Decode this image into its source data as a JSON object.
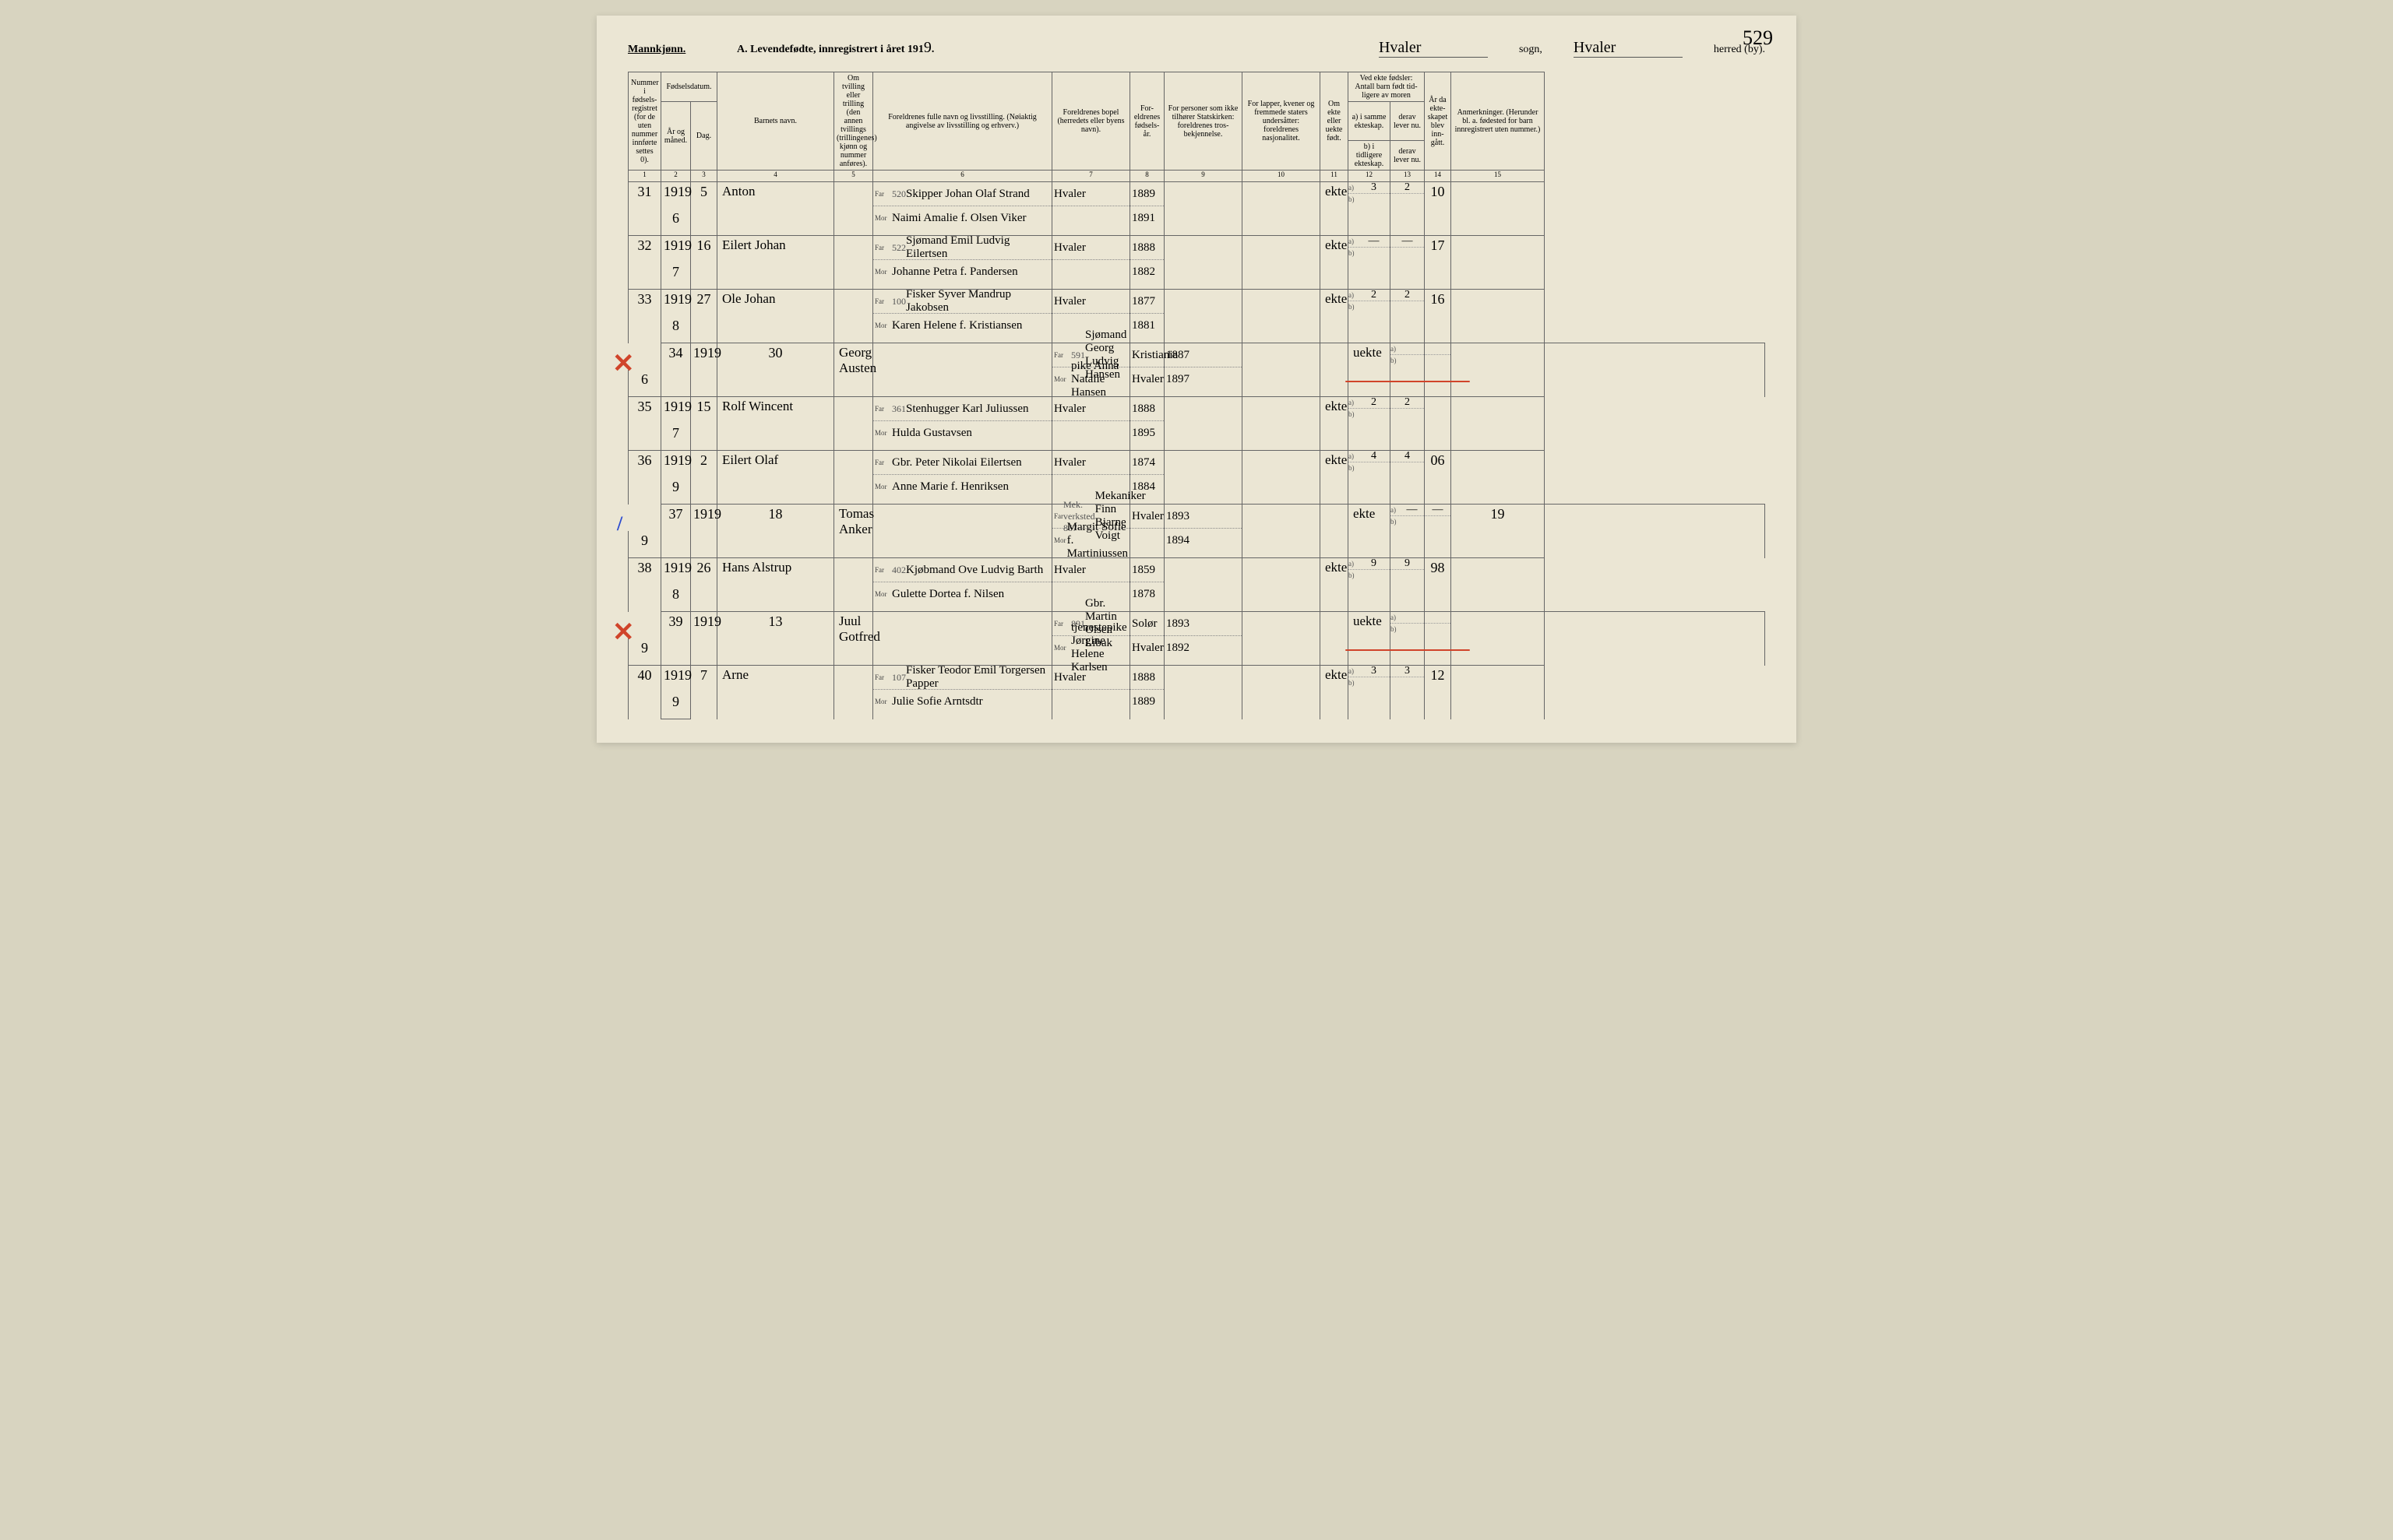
{
  "header": {
    "gender": "Mannkjønn.",
    "title_prefix": "A.  Levendefødte, innregistrert i året 191",
    "year_suffix": "9",
    "sogn_value": "Hvaler",
    "sogn_label": "sogn,",
    "herred_value": "Hvaler",
    "herred_label": "herred (by).",
    "page_number": "529"
  },
  "columns": {
    "h1": "Nummer i fødsels-registret (for de uten nummer innførte settes 0).",
    "h2_group": "Fødselsdatum.",
    "h2a": "År og måned.",
    "h2b": "Dag.",
    "h4": "Barnets navn.",
    "h5": "Om tvilling eller trilling (den annen tvillings (trillingenes) kjønn og nummer anføres).",
    "h6": "Foreldrenes fulle navn og livsstilling. (Nøiaktig angivelse av livsstilling og erhverv.)",
    "h7": "Foreldrenes bopel (herredets eller byens navn).",
    "h8": "For-eldrenes fødsels-år.",
    "h9": "For personer som ikke tilhører Statskirken: foreldrenes tros-bekjennelse.",
    "h10": "For lapper, kvener og fremmede staters undersåtter: foreldrenes nasjonalitet.",
    "h11": "Om ekte eller uekte født.",
    "h12_group": "Ved ekte fødsler: Antall barn født tid-ligere av moren",
    "h12a": "a) i samme ekteskap.",
    "h12b": "b) i tidligere ekteskap.",
    "h13a": "derav lever nu.",
    "h13b": "derav lever nu.",
    "h14": "År da ekte-skapet blev inn-gått.",
    "h15": "Anmerkninger. (Herunder bl. a. fødested for barn innregistrert uten nummer.)",
    "far": "Far",
    "mor": "Mor",
    "a_lab": "a)",
    "b_lab": "b)",
    "nums": [
      "1",
      "2",
      "3",
      "4",
      "5",
      "6",
      "7",
      "8",
      "9",
      "10",
      "11",
      "12",
      "13",
      "14",
      "15"
    ]
  },
  "rows": [
    {
      "reg": "31",
      "year": "1919",
      "month": "6",
      "day": "5",
      "child": "Anton",
      "sup": "520",
      "far": "Skipper Johan Olaf Strand",
      "mor": "Naimi Amalie f. Olsen Viker",
      "bopel": "Hvaler",
      "far_yr": "1889",
      "mor_yr": "1891",
      "ekte": "ekte",
      "a": "3",
      "d": "2",
      "aar": "10",
      "mark": ""
    },
    {
      "reg": "32",
      "year": "1919",
      "month": "7",
      "day": "16",
      "child": "Eilert Johan",
      "sup": "522",
      "far": "Sjømand Emil Ludvig Eilertsen",
      "mor": "Johanne Petra f. Pandersen",
      "bopel": "Hvaler",
      "far_yr": "1888",
      "mor_yr": "1882",
      "ekte": "ekte",
      "a": "—",
      "d": "—",
      "aar": "17",
      "mark": ""
    },
    {
      "reg": "33",
      "year": "1919",
      "month": "8",
      "day": "27",
      "child": "Ole Johan",
      "sup": "100",
      "far": "Fisker Syver Mandrup Jakobsen",
      "mor": "Karen Helene f. Kristiansen",
      "bopel": "Hvaler",
      "far_yr": "1877",
      "mor_yr": "1881",
      "ekte": "ekte",
      "a": "2",
      "d": "2",
      "aar": "16",
      "mark": ""
    },
    {
      "reg": "34",
      "year": "1919",
      "month": "6",
      "day": "30",
      "child": "Georg Austen",
      "sup": "591",
      "far": "Sjømand Georg Ludvig Hansen",
      "mor": "pike Anna Natalie Hansen",
      "bopel_far": "Kristiania",
      "bopel": "Hvaler",
      "far_yr": "1887",
      "mor_yr": "1897",
      "ekte": "uekte",
      "a": "",
      "d": "",
      "aar": "",
      "mark": "x-red",
      "redline": true
    },
    {
      "reg": "35",
      "year": "1919",
      "month": "7",
      "day": "15",
      "child": "Rolf Wincent",
      "sup": "361",
      "far": "Stenhugger Karl Juliussen",
      "mor": "Hulda Gustavsen",
      "bopel": "Hvaler",
      "far_yr": "1888",
      "mor_yr": "1895",
      "ekte": "ekte",
      "a": "2",
      "d": "2",
      "aar": "",
      "mark": ""
    },
    {
      "reg": "36",
      "year": "1919",
      "month": "9",
      "day": "2",
      "child": "Eilert Olaf",
      "sup": "",
      "far": "Gbr. Peter Nikolai Eilertsen",
      "mor": "Anne Marie f. Henriksen",
      "bopel": "Hvaler",
      "far_yr": "1874",
      "mor_yr": "1884",
      "ekte": "ekte",
      "a": "4",
      "d": "4",
      "aar": "06",
      "mark": ""
    },
    {
      "reg": "37",
      "year": "1919",
      "month": "9",
      "day": "18",
      "child": "Tomas Anker",
      "sup": "Mek. verksted 867",
      "far": "Mekaniker Finn Bjarne Voigt",
      "mor": "Margit Sofie f. Martiniussen",
      "bopel": "Hvaler",
      "far_yr": "1893",
      "mor_yr": "1894",
      "ekte": "ekte",
      "a": "—",
      "d": "—",
      "aar": "19",
      "mark": "slash-blue"
    },
    {
      "reg": "38",
      "year": "1919",
      "month": "8",
      "day": "26",
      "child": "Hans Alstrup",
      "sup": "402",
      "far": "Kjøbmand Ove Ludvig Barth",
      "mor": "Gulette Dortea f. Nilsen",
      "bopel": "Hvaler",
      "far_yr": "1859",
      "mor_yr": "1878",
      "ekte": "ekte",
      "a": "9",
      "d": "9",
      "aar": "98",
      "mark": ""
    },
    {
      "reg": "39",
      "year": "1919",
      "month": "9",
      "day": "13",
      "child": "Juul Gotfred",
      "sup": "891",
      "far": "Gbr. Martin Olsen Libak",
      "mor": "tjenestepike Jørgine Helene Karlsen",
      "bopel_far": "Solør",
      "bopel": "Hvaler",
      "far_yr": "1893",
      "mor_yr": "1892",
      "ekte": "uekte",
      "a": "",
      "d": "",
      "aar": "",
      "mark": "x-red",
      "redline": true
    },
    {
      "reg": "40",
      "year": "1919",
      "month": "9",
      "day": "7",
      "child": "Arne",
      "sup": "107",
      "far": "Fisker Teodor Emil Torgersen Papper",
      "mor": "Julie Sofie Arntsdtr",
      "bopel": "Hvaler",
      "far_yr": "1888",
      "mor_yr": "1889",
      "ekte": "ekte",
      "a": "3",
      "d": "3",
      "aar": "12",
      "mark": ""
    }
  ],
  "style": {
    "bg": "#ebe6d4",
    "line": "#666",
    "red": "#d0442a",
    "blue": "#2a4ad0",
    "font_print": "Times New Roman",
    "font_hand": "cursive"
  }
}
